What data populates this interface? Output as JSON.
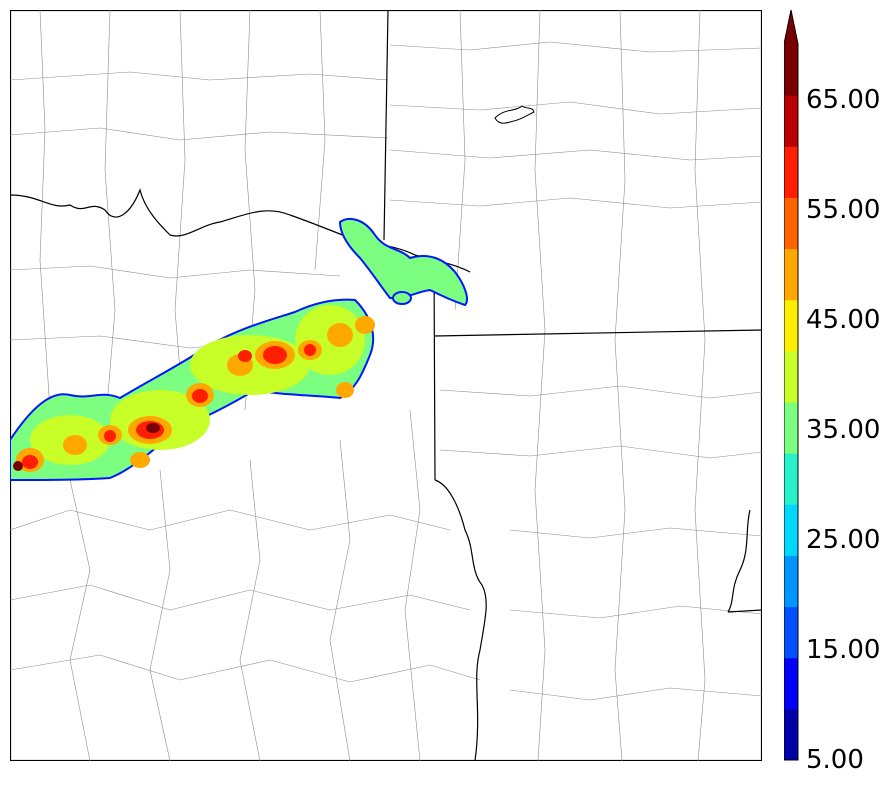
{
  "colorbar": {
    "tick_labels": [
      "5.00",
      "15.00",
      "25.00",
      "35.00",
      "45.00",
      "55.00",
      "65.00"
    ],
    "bins": [
      5,
      10,
      15,
      20,
      25,
      30,
      35,
      40,
      45,
      50,
      55,
      60,
      65,
      70
    ],
    "colors": [
      "#0000a8",
      "#0000f5",
      "#0050ff",
      "#0095ff",
      "#00d8ff",
      "#28f0c8",
      "#7cff80",
      "#c8ff28",
      "#ffee00",
      "#ffa800",
      "#ff6400",
      "#ff1e00",
      "#b80000",
      "#780000"
    ],
    "extend": "max"
  },
  "colors": {
    "border": "#000000",
    "county_line": "#8c8c8c",
    "outline": "#0018ff"
  }
}
